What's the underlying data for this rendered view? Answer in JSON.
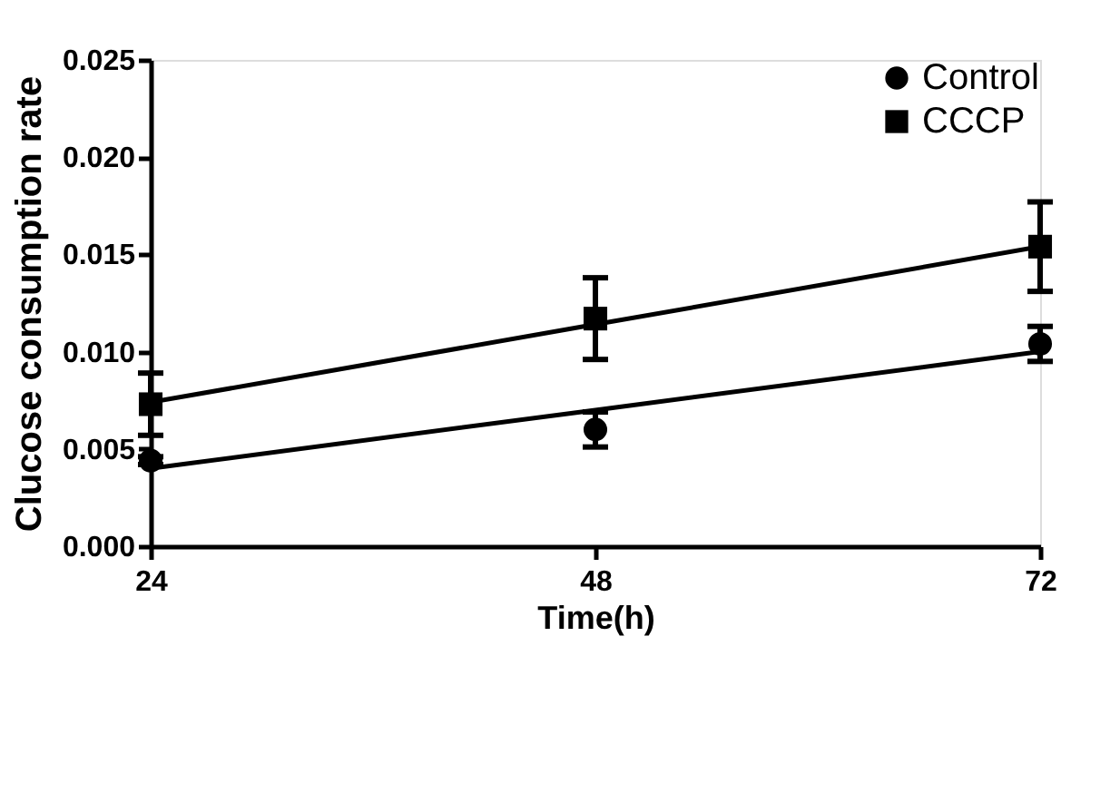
{
  "chart_data": {
    "type": "scatter",
    "xlabel": "Time(h)",
    "ylabel": "Clucose consumption rate",
    "x": [
      24,
      48,
      72
    ],
    "xlim": [
      24,
      72
    ],
    "xticks": [
      24,
      48,
      72
    ],
    "ylim": [
      0,
      0.025
    ],
    "yticks": [
      {
        "value": 0,
        "label": "0.000"
      },
      {
        "value": 0.005,
        "label": "0.005"
      },
      {
        "value": 0.01,
        "label": "0.010"
      },
      {
        "value": 0.015,
        "label": "0.015"
      },
      {
        "value": 0.02,
        "label": "0.020"
      },
      {
        "value": 0.025,
        "label": "0.025"
      }
    ],
    "grid": false,
    "legend": "top right",
    "series": [
      {
        "name": "Control",
        "marker": "circle",
        "color": "#000000",
        "values": [
          0.0044,
          0.006,
          0.0104
        ],
        "errors": [
          0.0002,
          0.0009,
          0.0009
        ]
      },
      {
        "name": "CCCP",
        "marker": "square",
        "color": "#000000",
        "values": [
          0.0073,
          0.0117,
          0.0154
        ],
        "errors": [
          0.0016,
          0.0021,
          0.0023
        ]
      },
      {
        "type": "line",
        "color": "#000000",
        "values": [
          0.004,
          0.007,
          0.01
        ]
      },
      {
        "type": "line",
        "color": "#000000",
        "values": [
          0.0074,
          0.0114,
          0.0154
        ]
      }
    ]
  }
}
